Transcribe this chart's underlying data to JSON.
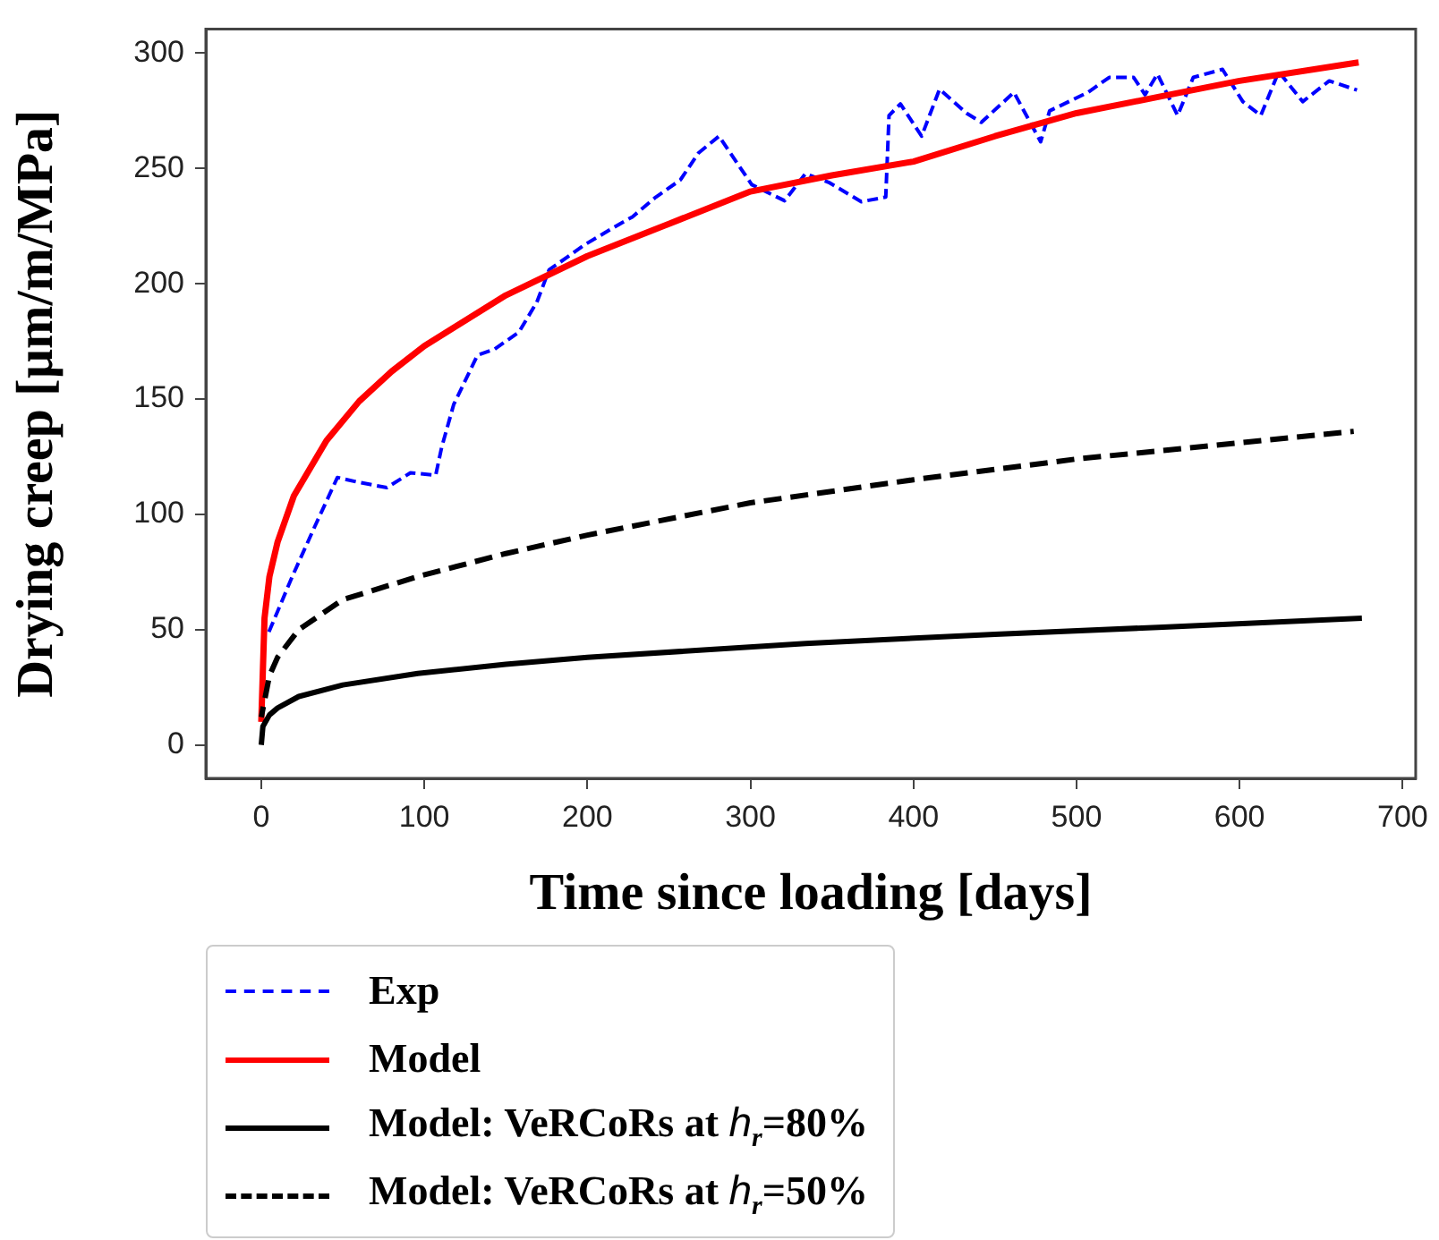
{
  "chart_data": {
    "type": "line",
    "xlabel": "Time since loading [days]",
    "ylabel": "Drying creep [µm/m/MPa]",
    "xlim": [
      -34,
      708
    ],
    "ylim": [
      -14.5,
      310.5
    ],
    "xticks": [
      0,
      100,
      200,
      300,
      400,
      500,
      600,
      700
    ],
    "yticks": [
      0,
      50,
      100,
      150,
      200,
      250,
      300
    ],
    "grid": false,
    "legend": "bottom",
    "marker": "none",
    "series": [
      {
        "name": "Exp",
        "color": "#0000ff",
        "line_style": "dashed",
        "x": [
          4.7,
          19,
          33,
          46.7,
          59,
          77,
          91.5,
          107,
          110.6,
          118,
          132.6,
          143,
          158,
          169,
          176.5,
          198.5,
          220,
          227.6,
          242,
          257,
          268,
          280.7,
          300.8,
          321,
          333.7,
          348,
          368,
          383,
          385,
          392,
          405,
          416,
          432.5,
          441.6,
          461.6,
          478,
          483.5,
          507,
          520,
          535,
          542,
          549.6,
          562,
          571.6,
          589.5,
          602,
          613,
          624,
          638.7,
          655,
          672
        ],
        "values": [
          49,
          73,
          95,
          116,
          114,
          111.6,
          118,
          117,
          129,
          147.6,
          169,
          171.6,
          179,
          192,
          206,
          217,
          226,
          229,
          237.6,
          245,
          256.6,
          264,
          243,
          236,
          247.7,
          244,
          235.6,
          237.6,
          273,
          278,
          264,
          284.4,
          274,
          270,
          283,
          261.6,
          275,
          283,
          289.5,
          289.5,
          282,
          291,
          273,
          289.5,
          293,
          279,
          273,
          292,
          279,
          288,
          284
        ]
      },
      {
        "name": "Model",
        "color": "#ff0000",
        "line_style": "solid",
        "x": [
          0,
          2,
          5,
          10,
          20,
          40,
          60,
          80,
          100,
          150,
          200,
          250,
          300,
          350,
          400,
          450,
          500,
          550,
          600,
          673
        ],
        "values": [
          10,
          55,
          73,
          88,
          108,
          132,
          149,
          162,
          173,
          195,
          212,
          226,
          240,
          247,
          253,
          264,
          274,
          281,
          288,
          296
        ]
      },
      {
        "name": "Model: VeRCoRs at h$_{r}$=80%",
        "color": "#000000",
        "line_style": "solid",
        "x": [
          0,
          1,
          5,
          10,
          23,
          50,
          96,
          150,
          200,
          334,
          450,
          550,
          675
        ],
        "values": [
          0,
          8,
          13,
          16,
          21,
          26,
          31,
          35,
          38,
          44,
          48,
          51,
          55
        ]
      },
      {
        "name": "Model: VeRCoRs at h$_{r}$=50%",
        "color": "#000000",
        "line_style": "dashed",
        "x": [
          0,
          5,
          10,
          23,
          50,
          96,
          150,
          200,
          300,
          400,
          500,
          600,
          670
        ],
        "values": [
          12,
          30,
          38,
          50,
          63,
          73,
          83,
          91,
          105,
          115,
          124,
          131,
          136
        ]
      }
    ]
  }
}
